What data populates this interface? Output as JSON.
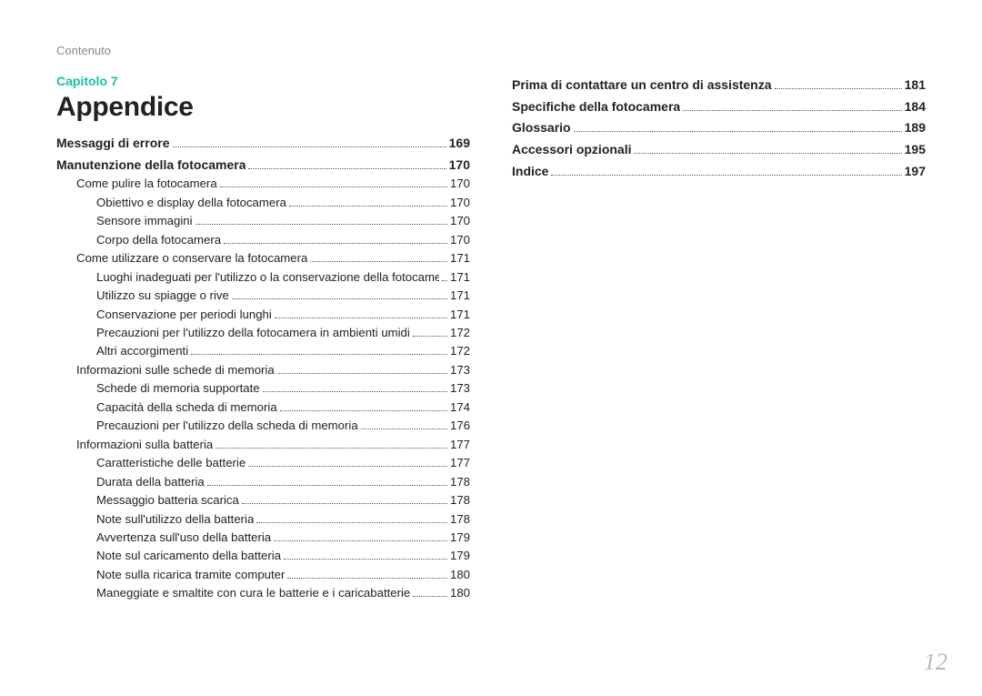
{
  "header_label": "Contenuto",
  "chapter_label": "Capitolo 7",
  "section_title": "Appendice",
  "page_number": "12",
  "colors": {
    "accent": "#18c0a6",
    "muted": "#888888",
    "pagenum": "#b9b9b9",
    "text": "#222222",
    "background": "#ffffff"
  },
  "typography": {
    "section_title_pt": 30,
    "chapter_pt": 14,
    "l1_pt": 14,
    "body_pt": 13.2,
    "pagenum_pt": 26
  },
  "left_column": [
    {
      "level": 1,
      "label": "Messaggi di errore",
      "page": "169"
    },
    {
      "level": 1,
      "label": "Manutenzione della fotocamera",
      "page": "170"
    },
    {
      "level": 2,
      "label": "Come pulire la fotocamera",
      "page": "170"
    },
    {
      "level": 3,
      "label": "Obiettivo e display della fotocamera",
      "page": "170"
    },
    {
      "level": 3,
      "label": "Sensore immagini",
      "page": "170"
    },
    {
      "level": 3,
      "label": "Corpo della fotocamera",
      "page": "170"
    },
    {
      "level": 2,
      "label": "Come utilizzare o conservare la fotocamera",
      "page": "171"
    },
    {
      "level": 3,
      "label": "Luoghi inadeguati per l'utilizzo o la conservazione della fotocamera",
      "page": "171"
    },
    {
      "level": 3,
      "label": "Utilizzo su spiagge o rive",
      "page": "171"
    },
    {
      "level": 3,
      "label": "Conservazione per periodi lunghi",
      "page": "171"
    },
    {
      "level": 3,
      "label": "Precauzioni per l'utilizzo della fotocamera in ambienti umidi",
      "page": "172"
    },
    {
      "level": 3,
      "label": "Altri accorgimenti",
      "page": "172"
    },
    {
      "level": 2,
      "label": "Informazioni sulle schede di memoria",
      "page": "173"
    },
    {
      "level": 3,
      "label": "Schede di memoria supportate",
      "page": "173"
    },
    {
      "level": 3,
      "label": "Capacità della scheda di memoria",
      "page": "174"
    },
    {
      "level": 3,
      "label": "Precauzioni per l'utilizzo della scheda di memoria",
      "page": "176"
    },
    {
      "level": 2,
      "label": "Informazioni sulla batteria",
      "page": "177"
    },
    {
      "level": 3,
      "label": "Caratteristiche delle batterie",
      "page": "177"
    },
    {
      "level": 3,
      "label": "Durata della batteria",
      "page": "178"
    },
    {
      "level": 3,
      "label": "Messaggio batteria scarica",
      "page": "178"
    },
    {
      "level": 3,
      "label": "Note sull'utilizzo della batteria",
      "page": "178"
    },
    {
      "level": 3,
      "label": "Avvertenza sull'uso della batteria",
      "page": "179"
    },
    {
      "level": 3,
      "label": "Note sul caricamento della batteria",
      "page": "179"
    },
    {
      "level": 3,
      "label": "Note sulla ricarica tramite computer",
      "page": "180"
    },
    {
      "level": 3,
      "label": "Maneggiate e smaltite con cura le batterie e i caricabatterie",
      "page": "180"
    }
  ],
  "right_column": [
    {
      "level": 1,
      "label": "Prima di contattare un centro di assistenza",
      "page": "181"
    },
    {
      "level": 1,
      "label": "Specifiche della fotocamera",
      "page": "184"
    },
    {
      "level": 1,
      "label": "Glossario",
      "page": "189"
    },
    {
      "level": 1,
      "label": "Accessori opzionali",
      "page": "195"
    },
    {
      "level": 1,
      "label": "Indice",
      "page": "197"
    }
  ]
}
